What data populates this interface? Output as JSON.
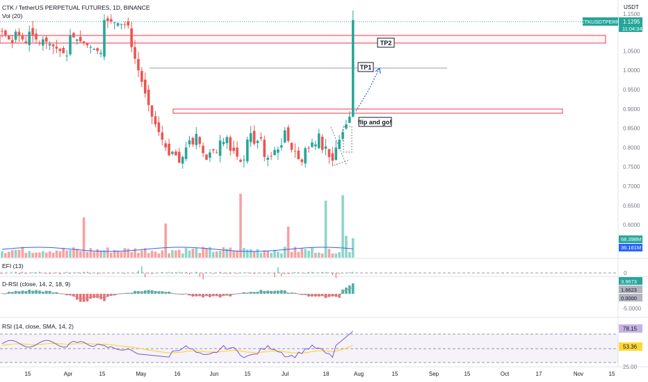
{
  "header": {
    "symbol_line": "CTK / TetherUS PERPETUAL FUTURES, 1D, BINANCE",
    "vol_label": "Vol (20)"
  },
  "price_axis": {
    "currency": "USDT",
    "top_tick": "1.1500",
    "ticks": [
      "1.0500",
      "1.0000",
      "0.9500",
      "0.9000",
      "0.8500",
      "0.8000",
      "0.7500",
      "0.7000",
      "0.6500",
      "0.6000"
    ],
    "ticker_badge": "CTKUSDTPERP",
    "last_price": "1.1295",
    "countdown": "11:04:34",
    "vol_badges": [
      "68.398M",
      "36.161M"
    ]
  },
  "annotations": {
    "tp2": "TP2",
    "tp1": "TP1",
    "flip": "flip and go!"
  },
  "efi": {
    "label": "EFI (13)",
    "zero_tick": "0"
  },
  "drsi": {
    "label": "D-RSI (close, 14, 2, 18, 9)",
    "badges": [
      "3.9673",
      "1.6623",
      "0.0000"
    ],
    "tick_neg": "-5.0000"
  },
  "rsi": {
    "label": "RSI (14, close, SMA, 14, 2)",
    "badges": [
      "78.15",
      "53.36"
    ],
    "bottom_tick": "25.00"
  },
  "time_axis": {
    "labels": [
      "15",
      "Apr",
      "15",
      "May",
      "16",
      "Jun",
      "15",
      "Jul",
      "18",
      "Aug",
      "15",
      "Sep",
      "15",
      "Oct",
      "17",
      "Nov",
      "15"
    ]
  },
  "colors": {
    "up": "#26a69a",
    "down": "#ef5350",
    "up_vol": "#8fd4c9",
    "down_vol": "#f4a3a0",
    "ma": "#2962ff",
    "rsi_line": "#7e57c2",
    "rsi_ma": "#fdd835",
    "zone": "#f23645",
    "badge_green": "#26a69a",
    "badge_blue": "#2962ff"
  },
  "chart_data": {
    "type": "candlestick",
    "title": "CTK / TetherUS PERPETUAL FUTURES, 1D, BINANCE",
    "ylabel": "USDT",
    "ylim": [
      0.7,
      1.15
    ],
    "zones": [
      {
        "label": "TP2",
        "low": 1.07,
        "high": 1.085
      },
      {
        "label": "flip zone",
        "low": 0.89,
        "high": 0.898
      }
    ],
    "levels": [
      {
        "label": "TP1",
        "value": 1.005
      }
    ],
    "last": 1.1295,
    "indicators": {
      "EFI": {
        "length": 13
      },
      "D-RSI": {
        "values": [
          3.9673,
          1.6623,
          0.0
        ]
      },
      "RSI": {
        "length": 14,
        "value": 78.15,
        "ma": 53.36
      }
    }
  }
}
